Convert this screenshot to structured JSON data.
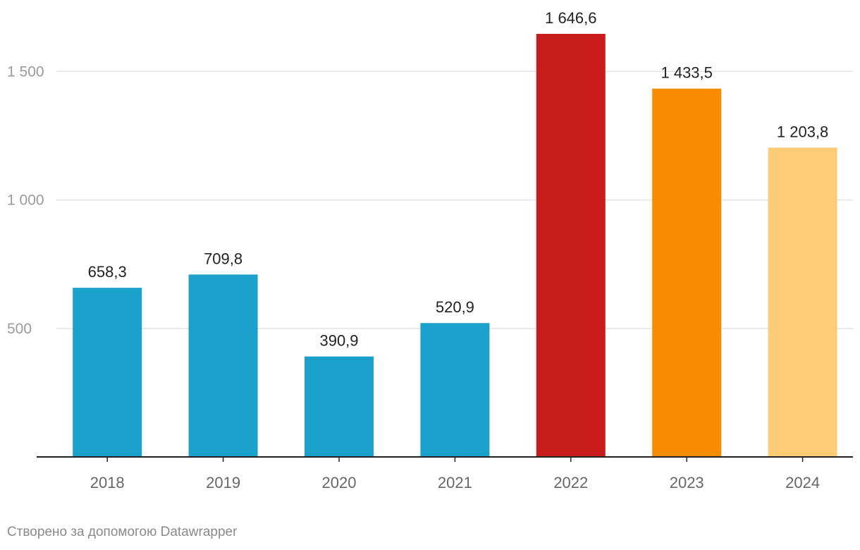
{
  "chart_data": {
    "type": "bar",
    "categories": [
      "2018",
      "2019",
      "2020",
      "2021",
      "2022",
      "2023",
      "2024"
    ],
    "values": [
      658.3,
      709.8,
      390.9,
      520.9,
      1646.6,
      1433.5,
      1203.8
    ],
    "value_labels": [
      "658,3",
      "709,8",
      "390,9",
      "520,9",
      "1 646,6",
      "1 433,5",
      "1 203,8"
    ],
    "bar_colors": [
      "#1aa1cc",
      "#1aa1cc",
      "#1aa1cc",
      "#1aa1cc",
      "#c91d1d",
      "#f78c00",
      "#fecb77"
    ],
    "yticks": [
      500,
      1000,
      1500
    ],
    "ytick_labels": [
      "500",
      "1 000",
      "1 500"
    ],
    "ylim": [
      0,
      1646.6
    ],
    "grid": true,
    "title": "",
    "xlabel": "",
    "ylabel": ""
  },
  "credit": "Створено за допомогою Datawrapper",
  "colors": {
    "grid": "#e3e3e3",
    "axis": "#222222",
    "tick_label": "#9a9a9a",
    "category_label": "#666666",
    "value_label": "#222222"
  }
}
